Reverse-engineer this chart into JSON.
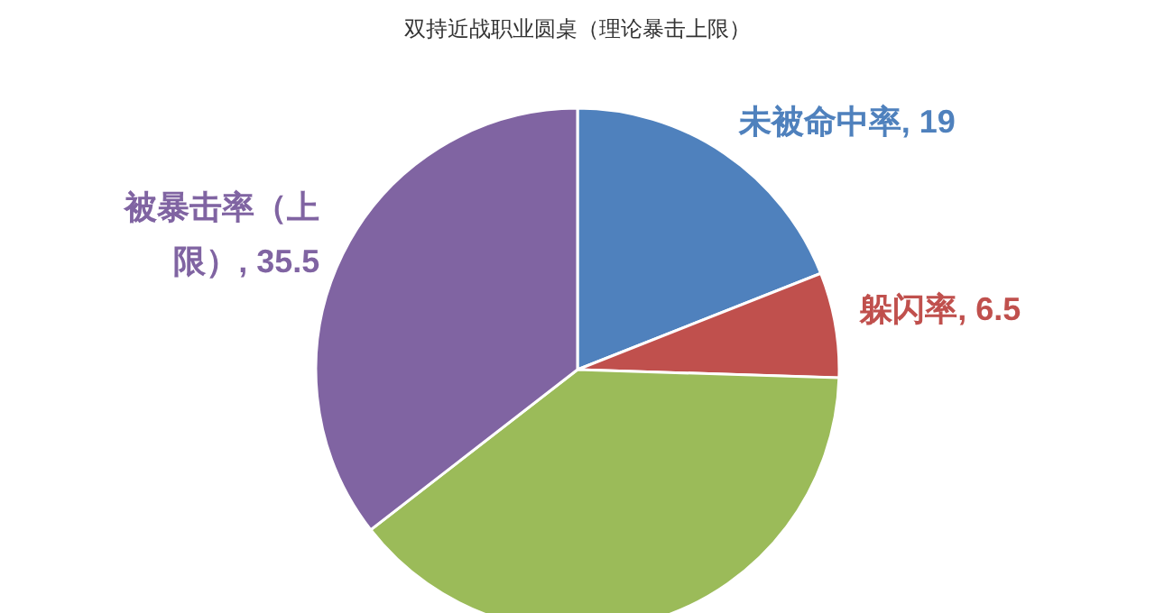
{
  "chart_data": {
    "type": "pie",
    "title": "双持近战职业圆桌（理论暴击上限）",
    "categories": [
      "未被命中率",
      "躲闪率",
      null,
      "被暴击率（上限）"
    ],
    "values": [
      19,
      6.5,
      39,
      35.5
    ],
    "colors": [
      "#4f81bd",
      "#c0504d",
      "#9bbb59",
      "#8064a2"
    ],
    "value_labels": [
      "19",
      "6.5",
      null,
      "35.5"
    ]
  }
}
